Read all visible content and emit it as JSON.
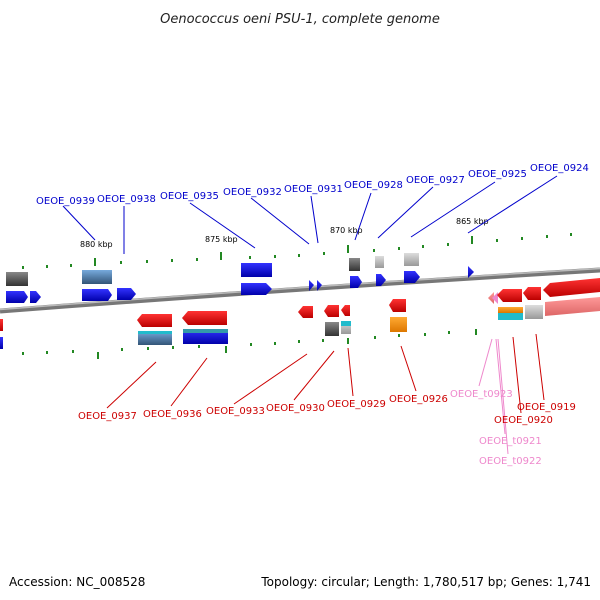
{
  "title": "Oenococcus oeni PSU-1, complete genome",
  "footer": {
    "accession": "Accession: NC_008528",
    "topology": "Topology: circular; Length: 1,780,517 bp; Genes: 1,741"
  },
  "scale_labels": [
    "880 kbp",
    "875 kbp",
    "870 kbp",
    "865 kbp"
  ],
  "genes_forward": [
    "OEOE_0939",
    "OEOE_0938",
    "OEOE_0935",
    "OEOE_0932",
    "OEOE_0931",
    "OEOE_0928",
    "OEOE_0927",
    "OEOE_0925",
    "OEOE_0924"
  ],
  "genes_reverse": [
    "OEOE_0937",
    "OEOE_0936",
    "OEOE_0933",
    "OEOE_0930",
    "OEOE_0929",
    "OEOE_0926",
    "OEOE_t0923",
    "OEOE_0920",
    "OEOE_0919",
    "OEOE_t0921",
    "OEOE_t0922"
  ],
  "colors": {
    "forward": "#0000cc",
    "reverse": "#cc0000",
    "trna": "#ee88cc",
    "scale_tick": "#228822",
    "backbone": "#888888"
  }
}
